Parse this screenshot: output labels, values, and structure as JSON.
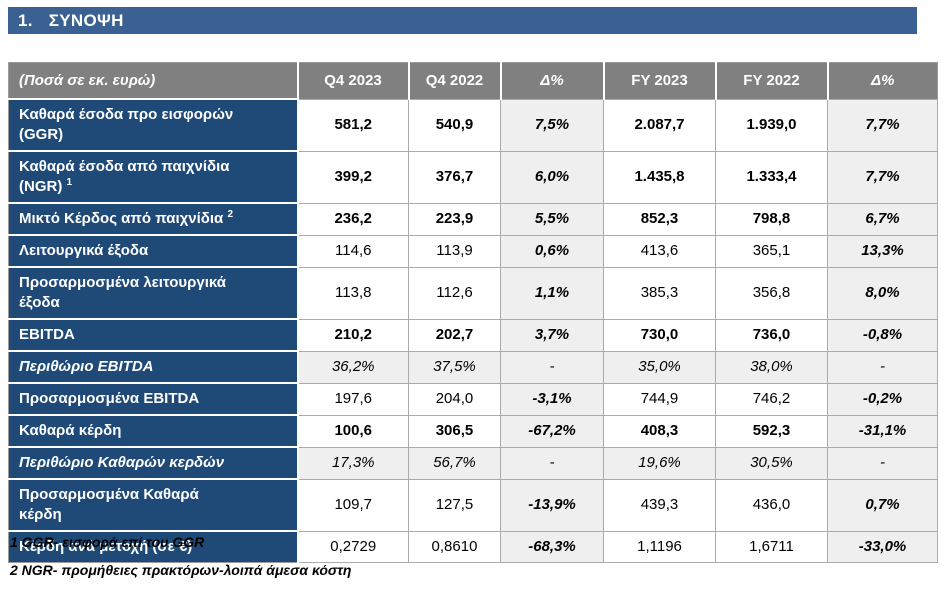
{
  "section": {
    "number": "1.",
    "title": "ΣΥΝΟΨΗ"
  },
  "table": {
    "header": {
      "unit_label": "(Ποσά σε εκ. ευρώ)",
      "columns": [
        "Q4 2023",
        "Q4 2022",
        "Δ%",
        "FY 2023",
        "FY 2022",
        "Δ%"
      ]
    },
    "rows": [
      {
        "label": "Καθαρά έσοδα προ εισφορών\n(GGR)",
        "sup": "",
        "style": "bold",
        "values": [
          "581,2",
          "540,9",
          "7,5%",
          "2.087,7",
          "1.939,0",
          "7,7%"
        ]
      },
      {
        "label": "Καθαρά έσοδα από παιχνίδια\n(NGR)",
        "sup": "1",
        "style": "bold",
        "values": [
          "399,2",
          "376,7",
          "6,0%",
          "1.435,8",
          "1.333,4",
          "7,7%"
        ]
      },
      {
        "label": "Μικτό Κέρδος από παιχνίδια",
        "sup": "2",
        "style": "bold",
        "values": [
          "236,2",
          "223,9",
          "5,5%",
          "852,3",
          "798,8",
          "6,7%"
        ]
      },
      {
        "label": "Λειτουργικά έξοδα",
        "sup": "",
        "style": "regular",
        "values": [
          "114,6",
          "113,9",
          "0,6%",
          "413,6",
          "365,1",
          "13,3%"
        ]
      },
      {
        "label": "Προσαρμοσμένα λειτουργικά\nέξοδα",
        "sup": "",
        "style": "regular",
        "values": [
          "113,8",
          "112,6",
          "1,1%",
          "385,3",
          "356,8",
          "8,0%"
        ]
      },
      {
        "label": "EBITDA",
        "sup": "",
        "style": "bold",
        "values": [
          "210,2",
          "202,7",
          "3,7%",
          "730,0",
          "736,0",
          "-0,8%"
        ]
      },
      {
        "label": "Περιθώριο EBITDA",
        "sup": "",
        "style": "margin",
        "values": [
          "36,2%",
          "37,5%",
          "-",
          "35,0%",
          "38,0%",
          "-"
        ]
      },
      {
        "label": "Προσαρμοσμένα EBITDA",
        "sup": "",
        "style": "regular",
        "values": [
          "197,6",
          "204,0",
          "-3,1%",
          "744,9",
          "746,2",
          "-0,2%"
        ]
      },
      {
        "label": "Καθαρά κέρδη",
        "sup": "",
        "style": "bold",
        "values": [
          "100,6",
          "306,5",
          "-67,2%",
          "408,3",
          "592,3",
          "-31,1%"
        ]
      },
      {
        "label": "Περιθώριο Καθαρών κερδών",
        "sup": "",
        "style": "margin",
        "values": [
          "17,3%",
          "56,7%",
          "-",
          "19,6%",
          "30,5%",
          "-"
        ]
      },
      {
        "label": "Προσαρμοσμένα Καθαρά\nκέρδη",
        "sup": "",
        "style": "regular",
        "values": [
          "109,7",
          "127,5",
          "-13,9%",
          "439,3",
          "436,0",
          "0,7%"
        ]
      },
      {
        "label": "Κέρδη ανά μετοχή (σε €)",
        "sup": "",
        "style": "regular",
        "values": [
          "0,2729",
          "0,8610",
          "-68,3%",
          "1,1196",
          "1,6711",
          "-33,0%"
        ]
      }
    ]
  },
  "footnotes": [
    "1 GGR- εισφορά επί του GGR",
    "2 NGR- προμήθειες πρακτόρων-λοιπά άμεσα κόστη"
  ],
  "colors": {
    "title_bar_bg": "#3A6191",
    "header_bg": "#808080",
    "row_label_bg": "#1F4A78",
    "delta_cell_bg": "#EFEFEF",
    "cell_border": "#ABABAB"
  }
}
